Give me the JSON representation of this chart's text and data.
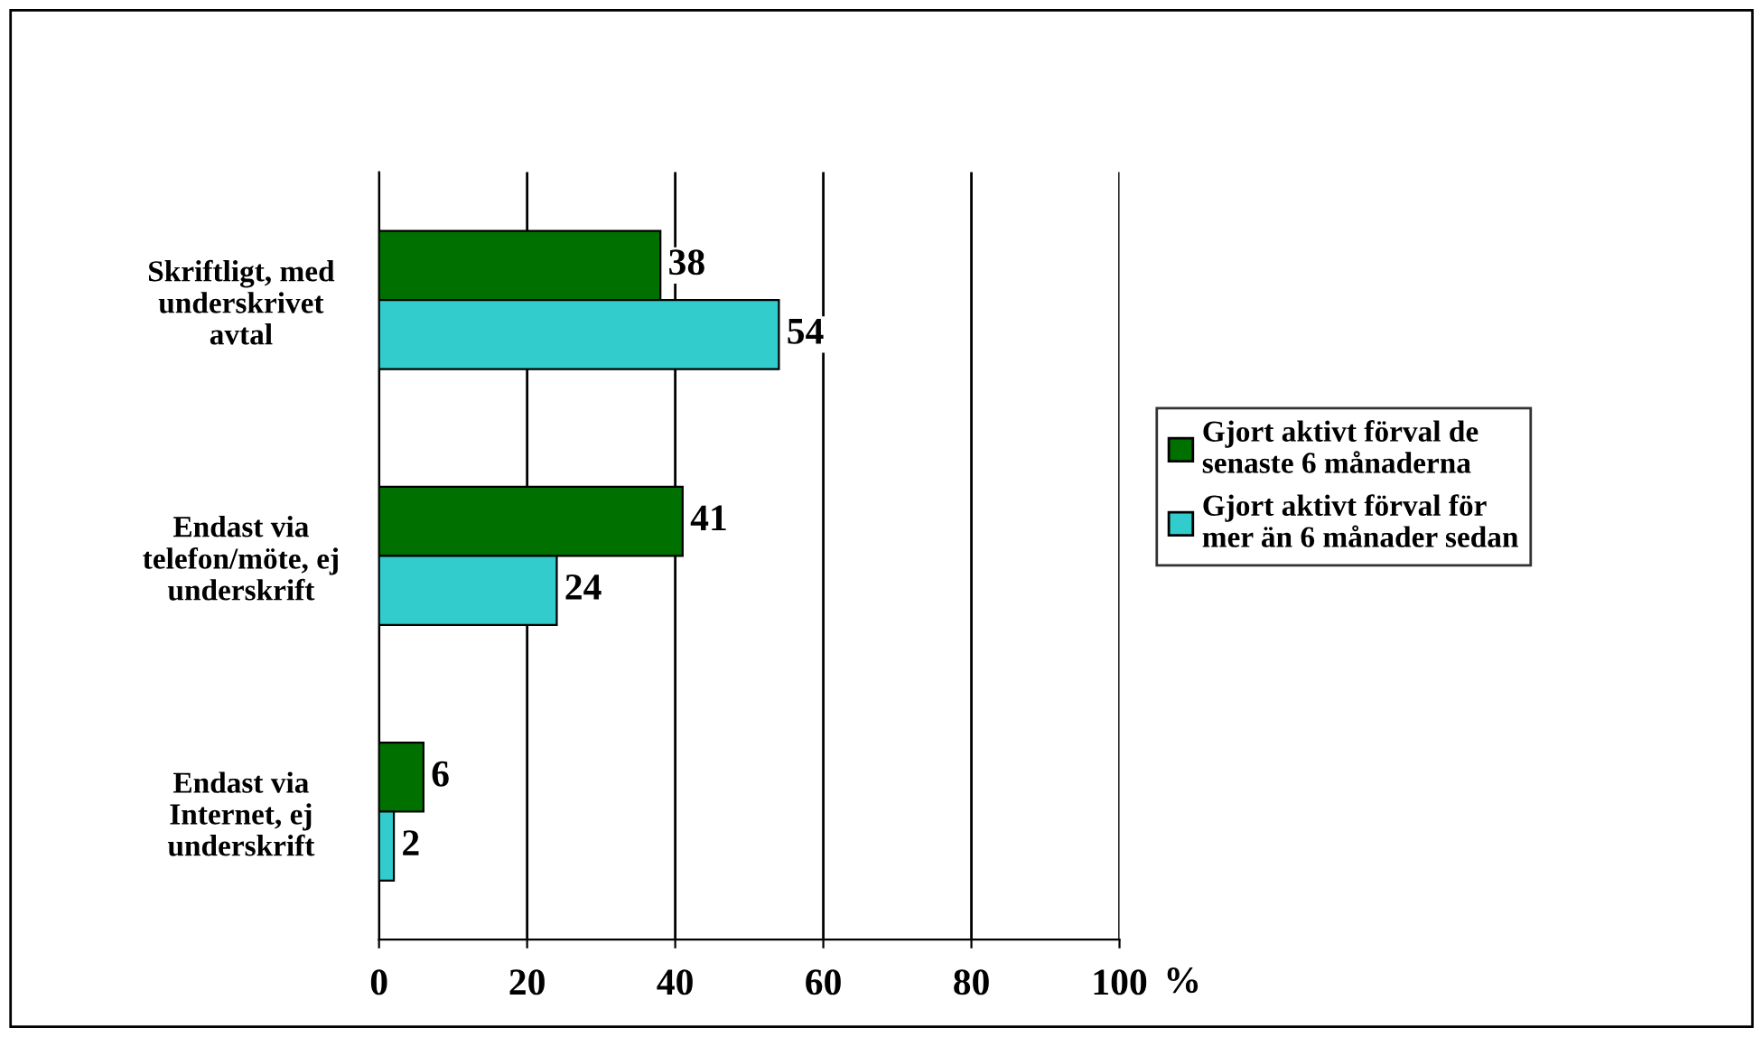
{
  "chart_data": {
    "type": "bar",
    "orientation": "horizontal",
    "categories": [
      "Skriftligt, med\nunderskrivet\navtal",
      "Endast via\ntelefon/möte, ej\nunderskrift",
      "Endast via\nInternet, ej\nunderskrift"
    ],
    "series": [
      {
        "name": "Gjort aktivt förval de senaste 6 månaderna",
        "color": "#007000",
        "values": [
          38,
          41,
          6
        ]
      },
      {
        "name": "Gjort aktivt förval för mer än 6 månader sedan",
        "color": "#33cccc",
        "values": [
          54,
          24,
          2
        ]
      }
    ],
    "xlim": [
      0,
      100
    ],
    "xticks": [
      0,
      20,
      40,
      60,
      80,
      100
    ],
    "xlabel": "%",
    "grid": "x",
    "legend": "right",
    "data_labels": true
  }
}
